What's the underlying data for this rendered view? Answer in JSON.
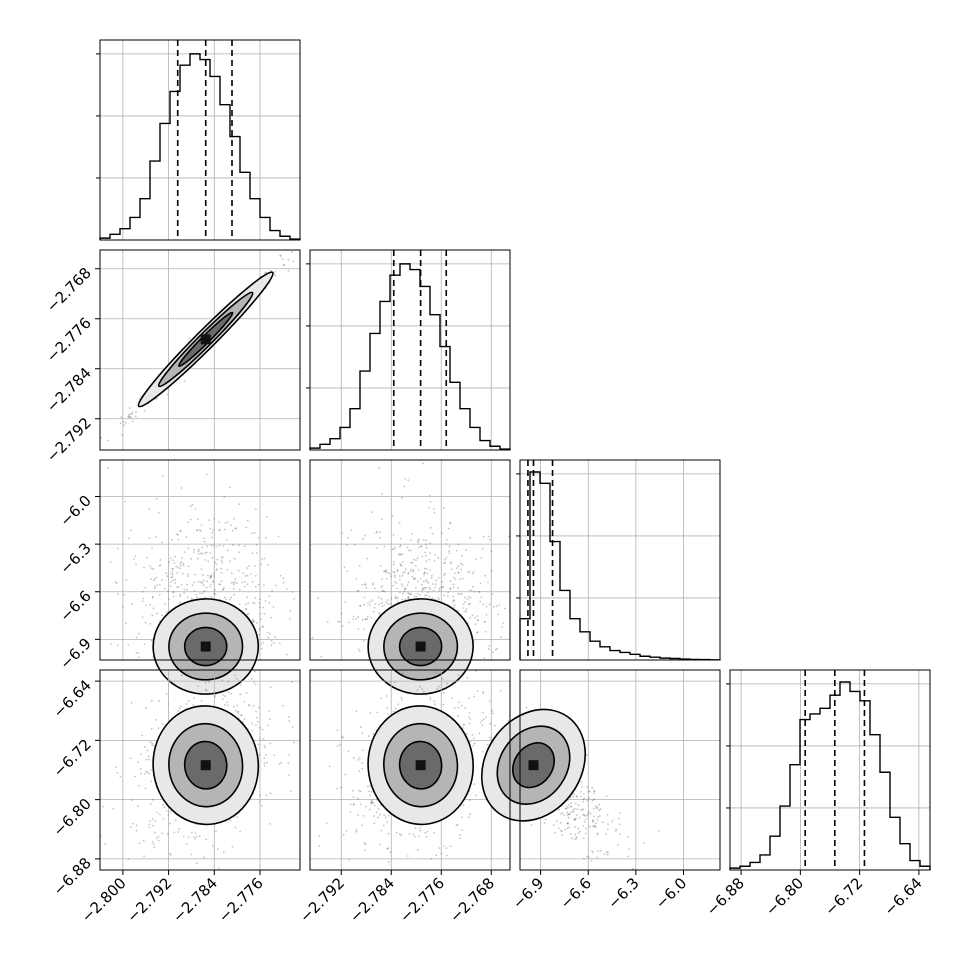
{
  "chart_data": {
    "type": "corner",
    "grid": true,
    "dims": [
      {
        "range": [
          -2.804,
          -2.769
        ],
        "ticks": [
          -2.8,
          -2.792,
          -2.784,
          -2.776
        ],
        "tick_labels": [
          "−2.800",
          "−2.792",
          "−2.784",
          "−2.776"
        ],
        "quantiles": [
          -2.7904,
          -2.7855,
          -2.7809
        ]
      },
      {
        "range": [
          -2.797,
          -2.765
        ],
        "ticks": [
          -2.792,
          -2.784,
          -2.776,
          -2.768
        ],
        "tick_labels": [
          "−2.792",
          "−2.784",
          "−2.776",
          "−2.768"
        ],
        "quantiles": [
          -2.7836,
          -2.7793,
          -2.7752
        ]
      },
      {
        "range": [
          -7.03,
          -5.77
        ],
        "ticks": [
          -6.9,
          -6.6,
          -6.3,
          -6.0
        ],
        "tick_labels": [
          "−6.9",
          "−6.6",
          "−6.3",
          "−6.0"
        ],
        "quantiles": [
          -6.98,
          -6.945,
          -6.825
        ]
      },
      {
        "range": [
          -6.895,
          -6.625
        ],
        "ticks": [
          -6.88,
          -6.8,
          -6.72,
          -6.64
        ],
        "tick_labels": [
          "−6.88",
          "−6.80",
          "−6.72",
          "−6.64"
        ],
        "quantiles": [
          -6.7935,
          -6.7535,
          -6.7135
        ]
      }
    ],
    "histograms": [
      [
        0.01,
        0.03,
        0.06,
        0.12,
        0.22,
        0.42,
        0.62,
        0.79,
        0.93,
        0.99,
        0.96,
        0.87,
        0.72,
        0.55,
        0.36,
        0.22,
        0.12,
        0.05,
        0.02,
        0.005
      ],
      [
        0.01,
        0.03,
        0.06,
        0.12,
        0.22,
        0.42,
        0.62,
        0.79,
        0.93,
        0.99,
        0.96,
        0.87,
        0.72,
        0.55,
        0.36,
        0.22,
        0.12,
        0.05,
        0.02,
        0.005
      ],
      [
        0.22,
        1.0,
        0.94,
        0.63,
        0.37,
        0.22,
        0.15,
        0.1,
        0.07,
        0.05,
        0.04,
        0.03,
        0.02,
        0.015,
        0.01,
        0.008,
        0.005,
        0.003,
        0.002,
        0.001
      ],
      [
        0.01,
        0.02,
        0.04,
        0.08,
        0.18,
        0.34,
        0.56,
        0.8,
        0.83,
        0.86,
        0.93,
        1.0,
        0.95,
        0.9,
        0.72,
        0.52,
        0.28,
        0.14,
        0.05,
        0.02
      ]
    ],
    "panels": [
      {
        "row": 1,
        "col": 0,
        "center": [
          -2.7855,
          -2.7793
        ],
        "spread": [
          0.0046,
          0.0042
        ],
        "rho": 0.99
      },
      {
        "row": 2,
        "col": 0,
        "center": [
          -2.7855,
          -6.945
        ],
        "spread": [
          0.0046,
          0.15
        ],
        "rho": 0.1,
        "skew": true
      },
      {
        "row": 2,
        "col": 1,
        "center": [
          -2.7793,
          -6.945
        ],
        "spread": [
          0.0042,
          0.15
        ],
        "rho": 0.1,
        "skew": true
      },
      {
        "row": 3,
        "col": 0,
        "center": [
          -2.7855,
          -6.7535
        ],
        "spread": [
          0.0046,
          0.04
        ],
        "rho": 0.3
      },
      {
        "row": 3,
        "col": 1,
        "center": [
          -2.7793,
          -6.7535
        ],
        "spread": [
          0.0042,
          0.04
        ],
        "rho": 0.3
      },
      {
        "row": 3,
        "col": 2,
        "center": [
          -6.945,
          -6.7535
        ],
        "spread": [
          0.15,
          0.04
        ],
        "rho": -0.75,
        "skew": true
      }
    ]
  }
}
